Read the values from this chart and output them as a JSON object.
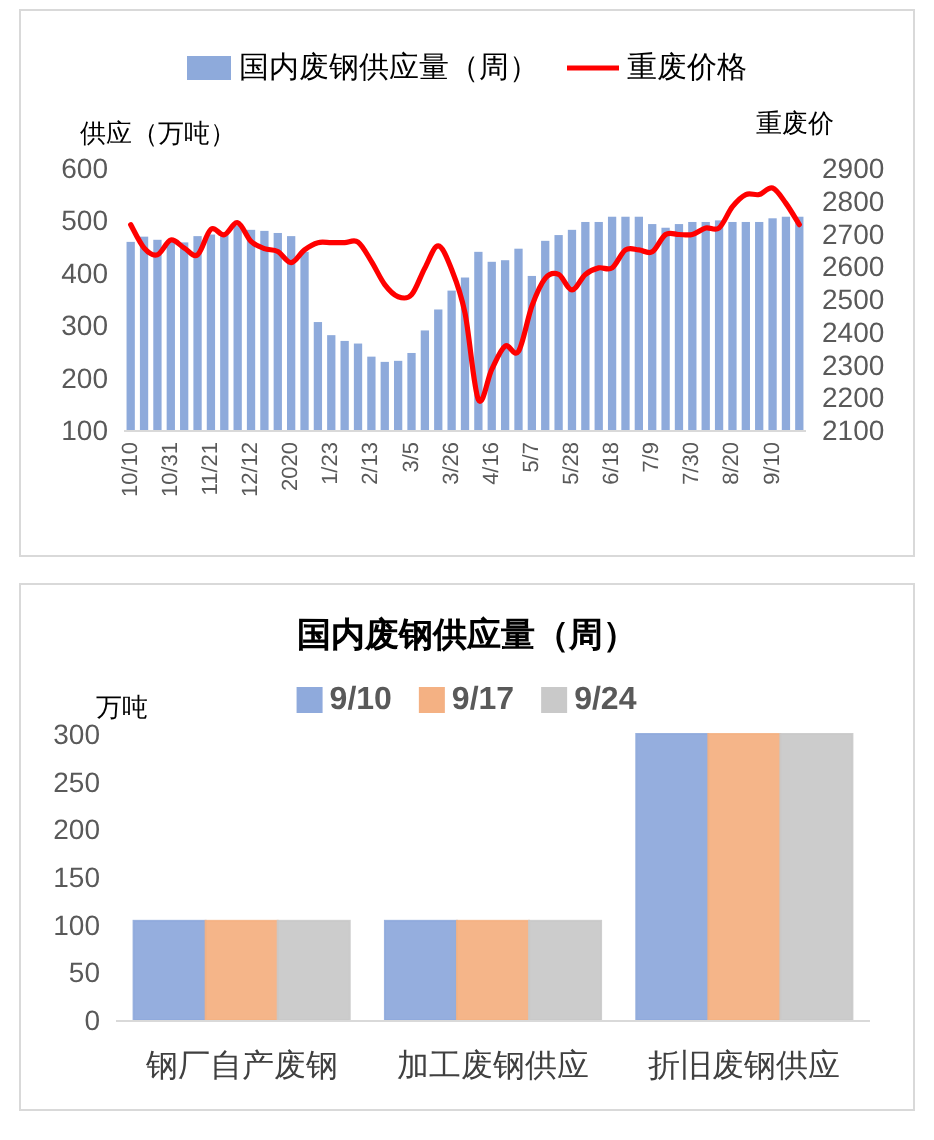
{
  "chart_data": [
    {
      "type": "bar",
      "ylabel": "供应（万吨）",
      "y2label": "重废价",
      "categories": [
        "10/10",
        null,
        null,
        "10/31",
        null,
        null,
        "11/21",
        null,
        null,
        "12/12",
        null,
        null,
        "2020",
        null,
        null,
        "1/23",
        null,
        null,
        "2/13",
        null,
        null,
        "3/5",
        null,
        null,
        "3/26",
        null,
        null,
        "4/16",
        null,
        null,
        "5/7",
        null,
        null,
        "5/28",
        null,
        null,
        "6/18",
        null,
        null,
        "7/9",
        null,
        null,
        "7/30",
        null,
        null,
        "8/20",
        null,
        null,
        "9/10",
        null,
        null
      ],
      "series": [
        {
          "name": "国内废钢供应量（周）",
          "color": "#8eaadb",
          "values": [
            459,
            469,
            463,
            462,
            458,
            470,
            473,
            477,
            490,
            482,
            480,
            476,
            470,
            440,
            306,
            281,
            270,
            265,
            240,
            230,
            232,
            247,
            290,
            330,
            366,
            391,
            440,
            421,
            424,
            446,
            394,
            461,
            472,
            482,
            497,
            497,
            507,
            507,
            507,
            493,
            486,
            493,
            497,
            497,
            500,
            497,
            497,
            497,
            504,
            507,
            507
          ]
        },
        {
          "name": "重废价格",
          "type": "line",
          "axis": "y2",
          "color": "#ff0000",
          "values": [
            2727,
            2656,
            2635,
            2680,
            2656,
            2635,
            2713,
            2696,
            2733,
            2676,
            2654,
            2645,
            2611,
            2650,
            2672,
            2672,
            2672,
            2674,
            2615,
            2544,
            2507,
            2513,
            2595,
            2662,
            2590,
            2457,
            2193,
            2285,
            2356,
            2340,
            2478,
            2563,
            2575,
            2528,
            2575,
            2595,
            2595,
            2650,
            2650,
            2644,
            2697,
            2697,
            2697,
            2717,
            2717,
            2782,
            2819,
            2819,
            2839,
            2792,
            2727
          ]
        }
      ],
      "ylim": [
        100,
        600
      ],
      "yticks": [
        100,
        200,
        300,
        400,
        500,
        600
      ],
      "y2lim": [
        2100,
        2900
      ],
      "y2ticks": [
        2100,
        2200,
        2300,
        2400,
        2500,
        2600,
        2700,
        2800,
        2900
      ],
      "legend": "top",
      "line_style": "solid",
      "marker": "none"
    },
    {
      "type": "bar",
      "title": "国内废钢供应量（周）",
      "ylabel": "万吨",
      "categories": [
        "钢厂自产废钢",
        "加工废钢供应",
        "折旧废钢供应"
      ],
      "series": [
        {
          "name": "9/10",
          "color": "#8faadc",
          "values": [
            104,
            104,
            300
          ]
        },
        {
          "name": "9/17",
          "color": "#f4b183",
          "values": [
            104,
            104,
            300
          ]
        },
        {
          "name": "9/24",
          "color": "#c9c9c9",
          "values": [
            104,
            104,
            300
          ]
        }
      ],
      "ylim": [
        0,
        300
      ],
      "yticks": [
        0,
        50,
        100,
        150,
        200,
        250,
        300
      ],
      "legend": "top"
    }
  ]
}
